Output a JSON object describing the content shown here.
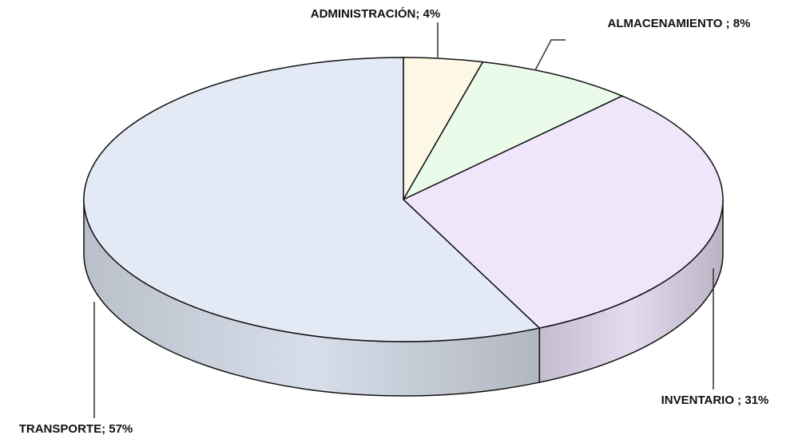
{
  "chart_data": {
    "type": "pie",
    "value_labels": [
      "ADMINISTRACIÓN; 4%",
      "ALMACENAMIENTO ; 8%",
      "INVENTARIO ; 31%",
      "TRANSPORTE; 57%"
    ],
    "values": [
      4,
      8,
      31,
      57
    ],
    "colors": [
      "#fdf8e6",
      "#eafbe9",
      "#efe6fb",
      "#e3eaf6"
    ]
  }
}
